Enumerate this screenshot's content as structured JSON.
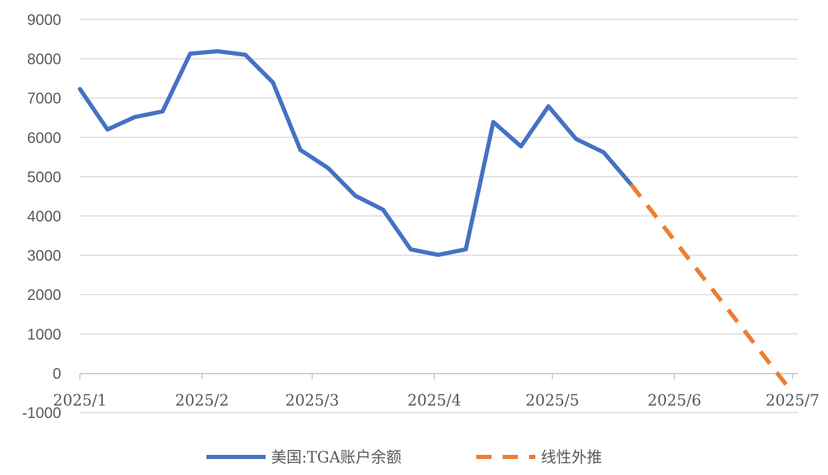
{
  "chart_data": {
    "type": "line",
    "title": "",
    "xlabel": "",
    "ylabel": "",
    "ylim": [
      -1000,
      9000
    ],
    "yticks": [
      -1000,
      0,
      1000,
      2000,
      3000,
      4000,
      5000,
      6000,
      7000,
      8000,
      9000
    ],
    "ytick_labels": [
      "-1000",
      "0",
      "1000",
      "2000",
      "3000",
      "4000",
      "5000",
      "6000",
      "7000",
      "8000",
      "9000"
    ],
    "xlim": [
      "2025-01-01",
      "2025-07-01"
    ],
    "xticks": [
      "2025-01-01",
      "2025-02-01",
      "2025-03-01",
      "2025-04-01",
      "2025-05-01",
      "2025-06-01",
      "2025-07-01"
    ],
    "xtick_labels": [
      "2025/1",
      "2025/2",
      "2025/3",
      "2025/4",
      "2025/5",
      "2025/6",
      "2025/7"
    ],
    "grid": "horizontal",
    "legend_position": "bottom",
    "series": [
      {
        "name": "美国:TGA账户余额",
        "style": "solid",
        "color": "#4472C4",
        "x": [
          "2025-01-01",
          "2025-01-08",
          "2025-01-15",
          "2025-01-22",
          "2025-01-29",
          "2025-02-05",
          "2025-02-12",
          "2025-02-19",
          "2025-02-26",
          "2025-03-05",
          "2025-03-12",
          "2025-03-19",
          "2025-03-26",
          "2025-04-02",
          "2025-04-09",
          "2025-04-16",
          "2025-04-23",
          "2025-04-30",
          "2025-05-07",
          "2025-05-14",
          "2025-05-21"
        ],
        "values": [
          7230,
          6200,
          6520,
          6660,
          8130,
          8190,
          8100,
          7400,
          5680,
          5220,
          4510,
          4160,
          3150,
          3010,
          3150,
          6390,
          5770,
          6790,
          5960,
          5620,
          4800
        ]
      },
      {
        "name": "线性外推",
        "style": "dashed",
        "color": "#ED7D31",
        "x": [
          "2025-05-21",
          "2025-07-01"
        ],
        "values": [
          4800,
          -500
        ]
      }
    ]
  }
}
